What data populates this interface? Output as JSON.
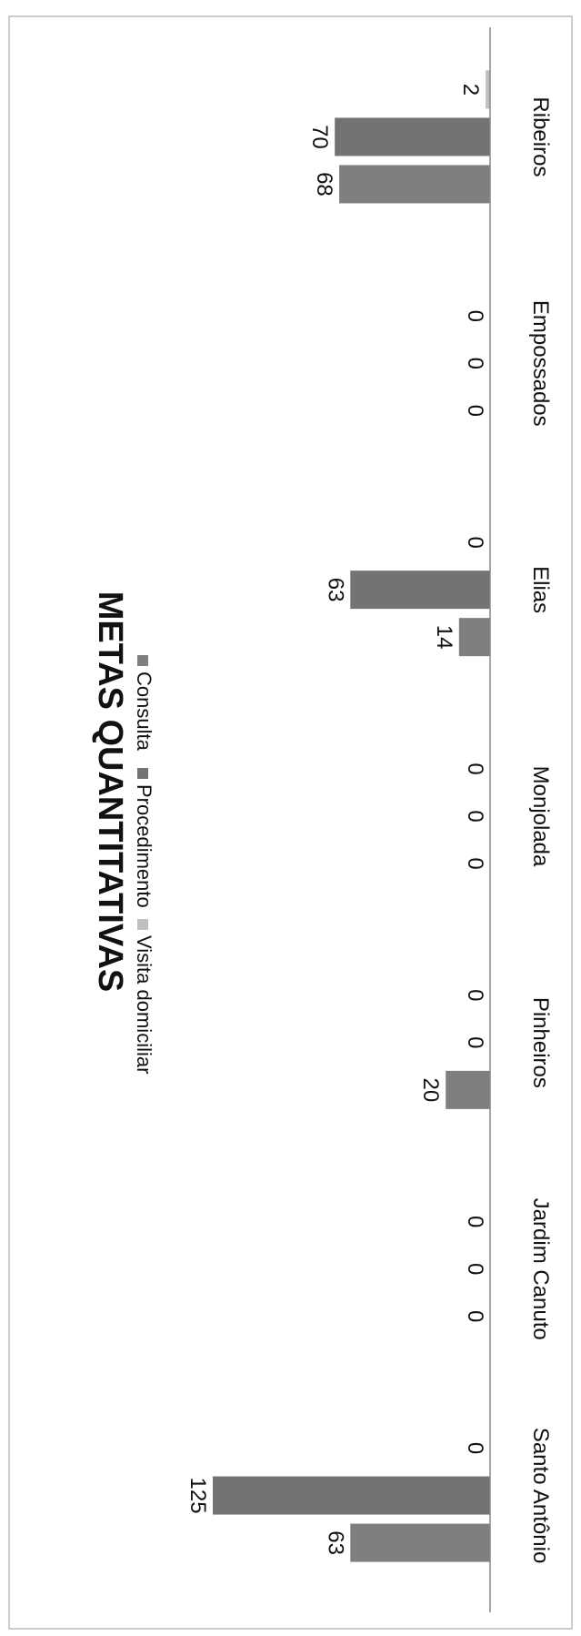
{
  "chart_data": {
    "type": "bar",
    "title": "METAS QUANTITATIVAS",
    "categories": [
      "Santo Antônio",
      "Jardim Canuto",
      "Pinheiros",
      "Monjolada",
      "Elias",
      "Empossados",
      "Ribeiros"
    ],
    "series": [
      {
        "name": "Consulta",
        "color": "#7f7f7f",
        "values": [
          63,
          0,
          20,
          0,
          14,
          0,
          68
        ]
      },
      {
        "name": "Procedimento",
        "color": "#737373",
        "values": [
          125,
          0,
          0,
          0,
          63,
          0,
          70
        ]
      },
      {
        "name": "Visita domiciliar",
        "color": "#bfbfbf",
        "values": [
          0,
          0,
          0,
          0,
          0,
          0,
          2
        ]
      }
    ],
    "ylim": [
      0,
      125
    ],
    "grid": false,
    "legend_position": "top",
    "orientation": "rotated 90° clockwise",
    "xlabel": "",
    "ylabel": ""
  }
}
